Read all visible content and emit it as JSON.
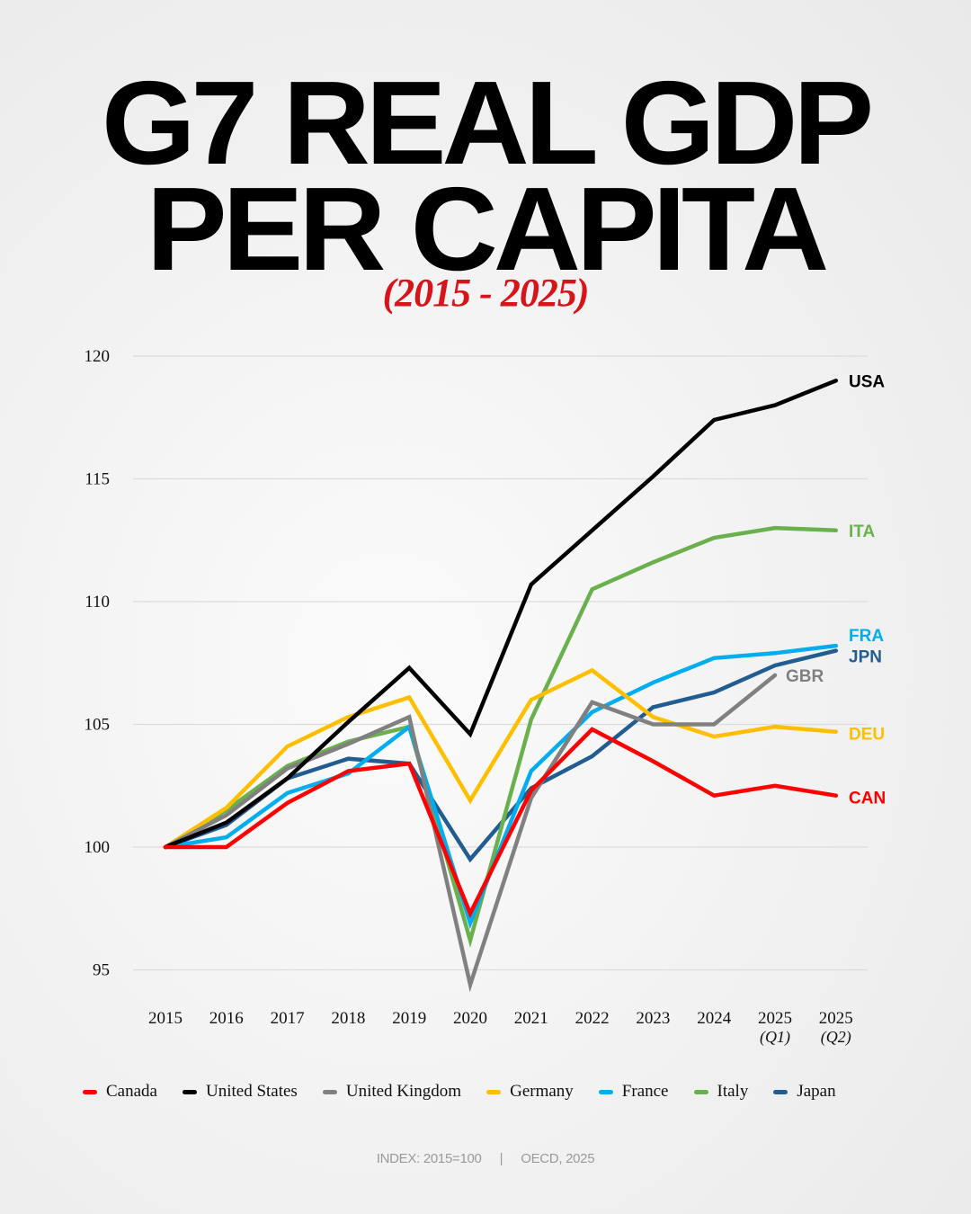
{
  "header": {
    "title_line1": "G7 REAL GDP",
    "title_line2": "PER CAPITA",
    "subtitle": "(2015 - 2025)"
  },
  "footer": {
    "index_note": "INDEX: 2015=100",
    "separator": "|",
    "source": "OECD, 2025"
  },
  "chart_data": {
    "type": "line",
    "title": "G7 REAL GDP PER CAPITA",
    "subtitle": "(2015 - 2025)",
    "xlabel": "",
    "ylabel": "",
    "x": [
      "2015",
      "2016",
      "2017",
      "2018",
      "2019",
      "2020",
      "2021",
      "2022",
      "2023",
      "2024",
      "2025 (Q1)",
      "2025 (Q2)"
    ],
    "x_tick_labels": [
      {
        "main": "2015",
        "sub": ""
      },
      {
        "main": "2016",
        "sub": ""
      },
      {
        "main": "2017",
        "sub": ""
      },
      {
        "main": "2018",
        "sub": ""
      },
      {
        "main": "2019",
        "sub": ""
      },
      {
        "main": "2020",
        "sub": ""
      },
      {
        "main": "2021",
        "sub": ""
      },
      {
        "main": "2022",
        "sub": ""
      },
      {
        "main": "2023",
        "sub": ""
      },
      {
        "main": "2024",
        "sub": ""
      },
      {
        "main": "2025",
        "sub": "(Q1)"
      },
      {
        "main": "2025",
        "sub": "(Q2)"
      }
    ],
    "ylim": [
      94,
      120
    ],
    "y_ticks": [
      95,
      100,
      105,
      110,
      115,
      120
    ],
    "grid": true,
    "legend_position": "bottom",
    "series": [
      {
        "name": "Canada",
        "code": "CAN",
        "color": "#ff0000",
        "values": [
          100,
          100.0,
          101.8,
          103.1,
          103.4,
          97.3,
          102.3,
          104.8,
          103.5,
          102.1,
          102.5,
          102.1
        ]
      },
      {
        "name": "United States",
        "code": "USA",
        "color": "#000000",
        "values": [
          100,
          101.0,
          102.8,
          105.1,
          107.3,
          104.6,
          110.7,
          112.9,
          115.1,
          117.4,
          118.0,
          119.0
        ]
      },
      {
        "name": "United Kingdom",
        "code": "GBR",
        "color": "#808080",
        "values": [
          100,
          101.3,
          103.2,
          104.2,
          105.3,
          94.4,
          102.0,
          105.9,
          105.0,
          105.0,
          107.0,
          null
        ]
      },
      {
        "name": "Germany",
        "code": "DEU",
        "color": "#ffbf00",
        "values": [
          100,
          101.6,
          104.1,
          105.3,
          106.1,
          101.9,
          106.0,
          107.2,
          105.3,
          104.5,
          104.9,
          104.7
        ]
      },
      {
        "name": "France",
        "code": "FRA",
        "color": "#00aeef",
        "values": [
          100,
          100.4,
          102.2,
          103.0,
          104.9,
          96.9,
          103.1,
          105.5,
          106.7,
          107.7,
          107.9,
          108.2
        ]
      },
      {
        "name": "Italy",
        "code": "ITA",
        "color": "#6ab04c",
        "values": [
          100,
          101.5,
          103.3,
          104.3,
          104.9,
          96.2,
          105.2,
          110.5,
          111.6,
          112.6,
          113.0,
          112.9
        ]
      },
      {
        "name": "Japan",
        "code": "JPN",
        "color": "#225d91",
        "values": [
          100,
          100.9,
          102.8,
          103.6,
          103.4,
          99.5,
          102.4,
          103.7,
          105.7,
          106.3,
          107.4,
          108.0
        ]
      }
    ],
    "end_labels": [
      {
        "code": "USA",
        "color": "#000000"
      },
      {
        "code": "ITA",
        "color": "#6ab04c"
      },
      {
        "code": "FRA",
        "color": "#00aeef"
      },
      {
        "code": "JPN",
        "color": "#225d91"
      },
      {
        "code": "GBR",
        "color": "#808080"
      },
      {
        "code": "DEU",
        "color": "#ffbf00"
      },
      {
        "code": "CAN",
        "color": "#ff0000"
      }
    ]
  }
}
